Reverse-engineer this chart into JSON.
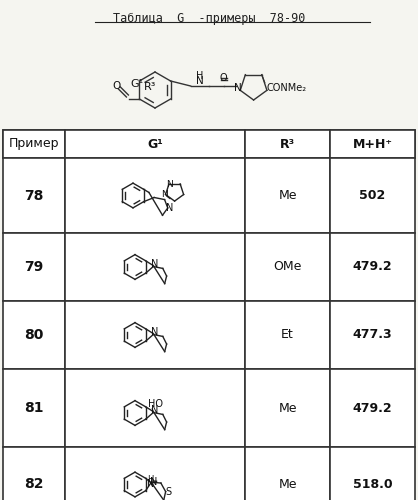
{
  "title": "Таблица  G  -примеры  78-90",
  "col_headers": [
    "Пример",
    "G¹",
    "R³",
    "M+H⁺"
  ],
  "rows": [
    {
      "example": "78",
      "r3": "Me",
      "mh": "502"
    },
    {
      "example": "79",
      "r3": "OMe",
      "mh": "479.2"
    },
    {
      "example": "80",
      "r3": "Et",
      "mh": "477.3"
    },
    {
      "example": "81",
      "r3": "Me",
      "mh": "479.2"
    },
    {
      "example": "82",
      "r3": "Me",
      "mh": "518.0"
    }
  ],
  "bg_color": "#f5f5f0",
  "table_bg": "#ffffff",
  "border_color": "#333333",
  "text_color": "#111111",
  "title_color": "#222222"
}
